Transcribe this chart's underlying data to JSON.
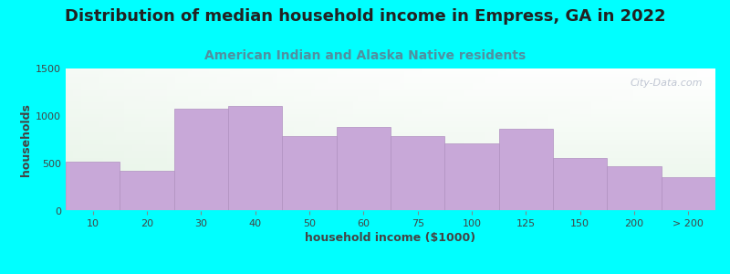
{
  "title": "Distribution of median household income in Empress, GA in 2022",
  "subtitle": "American Indian and Alaska Native residents",
  "xlabel": "household income ($1000)",
  "ylabel": "households",
  "background_color": "#00FFFF",
  "bar_color": "#C8A8D8",
  "bar_edge_color": "#B090C0",
  "categories": [
    "10",
    "20",
    "30",
    "40",
    "50",
    "60",
    "75",
    "100",
    "125",
    "150",
    "200",
    "> 200"
  ],
  "values": [
    520,
    420,
    1080,
    1110,
    790,
    880,
    785,
    715,
    870,
    555,
    470,
    360
  ],
  "ylim": [
    0,
    1500
  ],
  "yticks": [
    0,
    500,
    1000,
    1500
  ],
  "watermark": "City-Data.com",
  "title_fontsize": 13,
  "subtitle_fontsize": 10,
  "label_fontsize": 9,
  "tick_fontsize": 8,
  "title_color": "#222222",
  "subtitle_color": "#5090A0",
  "label_color": "#444444",
  "tick_color": "#444444"
}
